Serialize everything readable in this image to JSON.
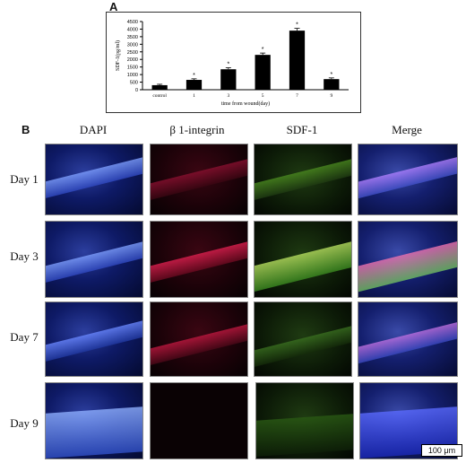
{
  "panel_a": {
    "letter": "A"
  },
  "panel_b": {
    "letter": "B"
  },
  "chart_data": {
    "type": "bar",
    "categories": [
      "control",
      "1",
      "3",
      "5",
      "7",
      "9"
    ],
    "values": [
      300,
      650,
      1350,
      2300,
      3900,
      700
    ],
    "errors": [
      60,
      70,
      100,
      120,
      150,
      80
    ],
    "significance": [
      "",
      "*",
      "*",
      "*",
      "*",
      "*"
    ],
    "ylabel": "SDF-1(pg/ml)",
    "xlabel": "time from wound(day)",
    "ylim": [
      0,
      4500
    ],
    "yticks": [
      0,
      500,
      1000,
      1500,
      2000,
      2500,
      3000,
      3500,
      4000,
      4500
    ],
    "bar_color": "#000000"
  },
  "columns": [
    "DAPI",
    "β 1-integrin",
    "SDF-1",
    "Merge"
  ],
  "rows": [
    "Day 1",
    "Day 3",
    "Day 7",
    "Day 9"
  ],
  "scale_bar_label": "100 μm"
}
